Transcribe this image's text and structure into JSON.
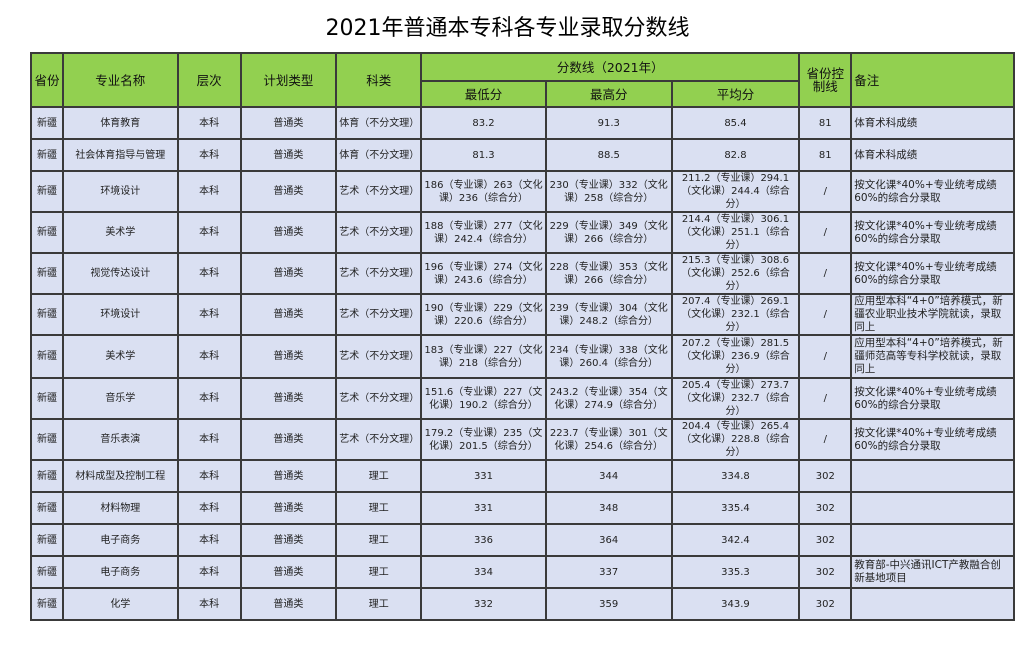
{
  "title": "2021年普通本专科各专业录取分数线",
  "headers": {
    "province": "省份",
    "major": "专业名称",
    "level": "层次",
    "plan": "计划类型",
    "category": "科类",
    "score_group": "分数线（2021年）",
    "min": "最低分",
    "max": "最高分",
    "avg": "平均分",
    "control": "省份控制线",
    "note": "备注"
  },
  "rows": [
    [
      "新疆",
      "体育教育",
      "本科",
      "普通类",
      "体育（不分文理）",
      "83.2",
      "91.3",
      "85.4",
      "81",
      "体育术科成绩"
    ],
    [
      "新疆",
      "社会体育指导与管理",
      "本科",
      "普通类",
      "体育（不分文理）",
      "81.3",
      "88.5",
      "82.8",
      "81",
      "体育术科成绩"
    ],
    [
      "新疆",
      "环境设计",
      "本科",
      "普通类",
      "艺术（不分文理）",
      "186（专业课）263（文化课）236（综合分）",
      "230（专业课）332（文化课）258（综合分）",
      "211.2（专业课）294.1（文化课）244.4（综合分）",
      "/",
      "按文化课*40%+专业统考成绩60%的综合分录取"
    ],
    [
      "新疆",
      "美术学",
      "本科",
      "普通类",
      "艺术（不分文理）",
      "188（专业课）277（文化课）242.4（综合分）",
      "229（专业课）349（文化课）266（综合分）",
      "214.4（专业课）306.1（文化课）251.1（综合分）",
      "/",
      "按文化课*40%+专业统考成绩60%的综合分录取"
    ],
    [
      "新疆",
      "视觉传达设计",
      "本科",
      "普通类",
      "艺术（不分文理）",
      "196（专业课）274（文化课）243.6（综合分）",
      "228（专业课）353（文化课）266（综合分）",
      "215.3（专业课）308.6（文化课）252.6（综合分）",
      "/",
      "按文化课*40%+专业统考成绩60%的综合分录取"
    ],
    [
      "新疆",
      "环境设计",
      "本科",
      "普通类",
      "艺术（不分文理）",
      "190（专业课）229（文化课）220.6（综合分）",
      "239（专业课）304（文化课）248.2（综合分）",
      "207.4（专业课）269.1（文化课）232.1（综合分）",
      "/",
      "应用型本科“4+0”培养模式，新疆农业职业技术学院就读，录取同上"
    ],
    [
      "新疆",
      "美术学",
      "本科",
      "普通类",
      "艺术（不分文理）",
      "183（专业课）227（文化课）218（综合分）",
      "234（专业课）338（文化课）260.4（综合分）",
      "207.2（专业课）281.5（文化课）236.9（综合分）",
      "/",
      "应用型本科“4+0”培养模式，新疆师范高等专科学校就读，录取同上"
    ],
    [
      "新疆",
      "音乐学",
      "本科",
      "普通类",
      "艺术（不分文理）",
      "151.6（专业课）227（文化课）190.2（综合分）",
      "243.2（专业课）354（文化课）274.9（综合分）",
      "205.4（专业课）273.7（文化课）232.7（综合分）",
      "/",
      "按文化课*40%+专业统考成绩60%的综合分录取"
    ],
    [
      "新疆",
      "音乐表演",
      "本科",
      "普通类",
      "艺术（不分文理）",
      "179.2（专业课）235（文化课）201.5（综合分）",
      "223.7（专业课）301（文化课）254.6（综合分）",
      "204.4（专业课）265.4（文化课）228.8（综合分）",
      "/",
      "按文化课*40%+专业统考成绩60%的综合分录取"
    ],
    [
      "新疆",
      "材料成型及控制工程",
      "本科",
      "普通类",
      "理工",
      "331",
      "344",
      "334.8",
      "302",
      ""
    ],
    [
      "新疆",
      "材料物理",
      "本科",
      "普通类",
      "理工",
      "331",
      "348",
      "335.4",
      "302",
      ""
    ],
    [
      "新疆",
      "电子商务",
      "本科",
      "普通类",
      "理工",
      "336",
      "364",
      "342.4",
      "302",
      ""
    ],
    [
      "新疆",
      "电子商务",
      "本科",
      "普通类",
      "理工",
      "334",
      "337",
      "335.3",
      "302",
      "教育部-中兴通讯ICT产教融合创新基地项目"
    ],
    [
      "新疆",
      "化学",
      "本科",
      "普通类",
      "理工",
      "332",
      "359",
      "343.9",
      "302",
      ""
    ]
  ],
  "colors": {
    "header_bg": "#92d050",
    "cell_bg": "#dae0f2"
  }
}
